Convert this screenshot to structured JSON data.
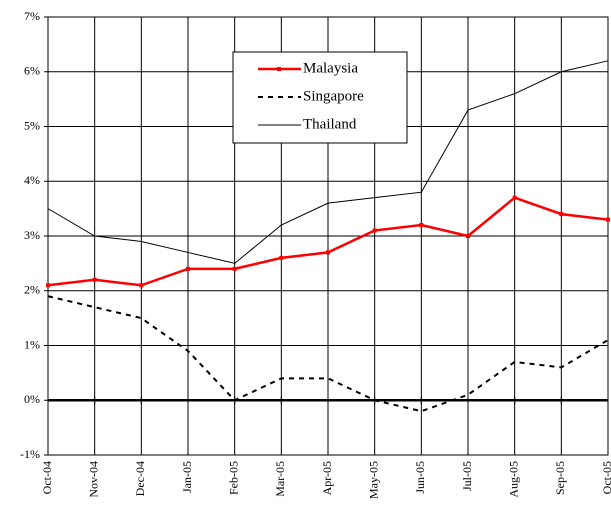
{
  "chart_data": {
    "type": "line",
    "categories": [
      "Oct-04",
      "Nov-04",
      "Dec-04",
      "Jan-05",
      "Feb-05",
      "Mar-05",
      "Apr-05",
      "May-05",
      "Jun-05",
      "Jul-05",
      "Aug-05",
      "Sep-05",
      "Oct-05"
    ],
    "series": [
      {
        "name": "Malaysia",
        "color": "#ff0000",
        "style": "solid",
        "marker": "square",
        "values": [
          2.1,
          2.2,
          2.1,
          2.4,
          2.4,
          2.6,
          2.7,
          3.1,
          3.2,
          3.0,
          3.7,
          3.4,
          3.3
        ]
      },
      {
        "name": "Singapore",
        "color": "#000000",
        "style": "dashed",
        "values": [
          1.9,
          1.7,
          1.5,
          0.9,
          0.0,
          0.4,
          0.4,
          0.0,
          -0.2,
          0.1,
          0.7,
          0.6,
          1.1
        ]
      },
      {
        "name": "Thailand",
        "color": "#000000",
        "style": "thin",
        "values": [
          3.5,
          3.0,
          2.9,
          2.7,
          2.5,
          3.2,
          3.6,
          3.7,
          3.8,
          5.3,
          5.6,
          6.0,
          6.2
        ]
      }
    ],
    "ylim": [
      -1,
      7
    ],
    "yticks": [
      {
        "value": -1,
        "label": "-1%"
      },
      {
        "value": 0,
        "label": "0%"
      },
      {
        "value": 1,
        "label": "1%"
      },
      {
        "value": 2,
        "label": "2%"
      },
      {
        "value": 3,
        "label": "3%"
      },
      {
        "value": 4,
        "label": "4%"
      },
      {
        "value": 5,
        "label": "5%"
      },
      {
        "value": 6,
        "label": "6%"
      },
      {
        "value": 7,
        "label": "7%"
      }
    ],
    "grid": true,
    "legend": "top-center"
  }
}
